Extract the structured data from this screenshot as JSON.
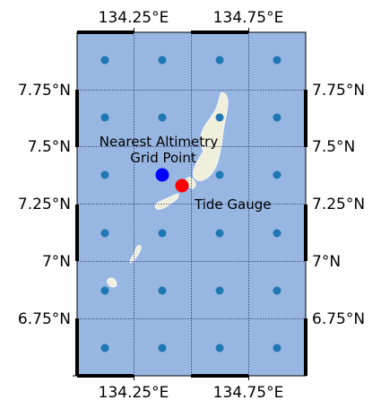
{
  "map": {
    "lon_ticks": [
      "134.25°E",
      "134.75°E"
    ],
    "lat_ticks": [
      "6.75°N",
      "7°N",
      "7.25°N",
      "7.5°N",
      "7.75°N"
    ],
    "ocean_color": "#97b6e1",
    "land_color": "#efefdb",
    "gridline_color": "#333366",
    "grid_point_color": "#1f77b4",
    "highlight_point_color": "#0000ff",
    "gauge_color": "#ff0000"
  },
  "annotations": {
    "nearest_line1": "Nearest Altimetry",
    "nearest_line2": "Grid Point",
    "tide_gauge": "Tide Gauge"
  }
}
